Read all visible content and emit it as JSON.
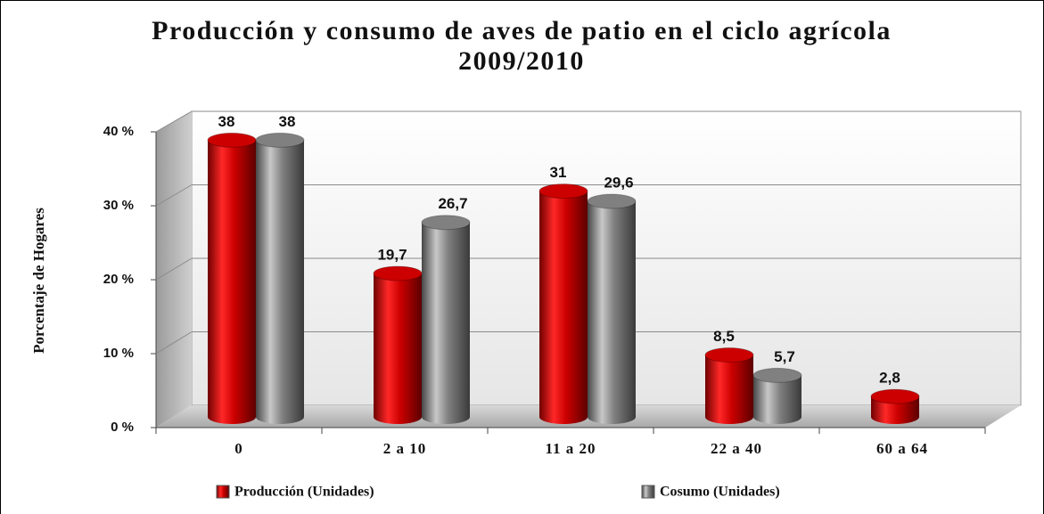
{
  "chart_data": {
    "type": "bar3d",
    "title": "Producción y consumo de aves de patio en el ciclo agrícola 2009/2010",
    "y_label": "Porcentaje de Hogares",
    "categories": [
      "0",
      "2 a 10",
      "11 a 20",
      "22 a 40",
      "60 a 64"
    ],
    "series": [
      {
        "name": "Producción (Unidades)",
        "color": "#cc0000",
        "values": [
          38,
          19.7,
          31,
          8.5,
          2.8
        ],
        "value_labels": [
          "38",
          "19,7",
          "31",
          "8,5",
          "2,8"
        ]
      },
      {
        "name": "Cosumo (Unidades)",
        "color": "#808080",
        "values": [
          38,
          26.7,
          29.6,
          5.7,
          null
        ],
        "value_labels": [
          "38",
          "26,7",
          "29,6",
          "5,7",
          null
        ]
      }
    ],
    "ylim": [
      0,
      40
    ],
    "yticks": [
      {
        "value": 0,
        "label": "0 %"
      },
      {
        "value": 10,
        "label": "10 %"
      },
      {
        "value": 20,
        "label": "20 %"
      },
      {
        "value": 30,
        "label": "30 %"
      },
      {
        "value": 40,
        "label": "40 %"
      }
    ],
    "grid": true
  }
}
